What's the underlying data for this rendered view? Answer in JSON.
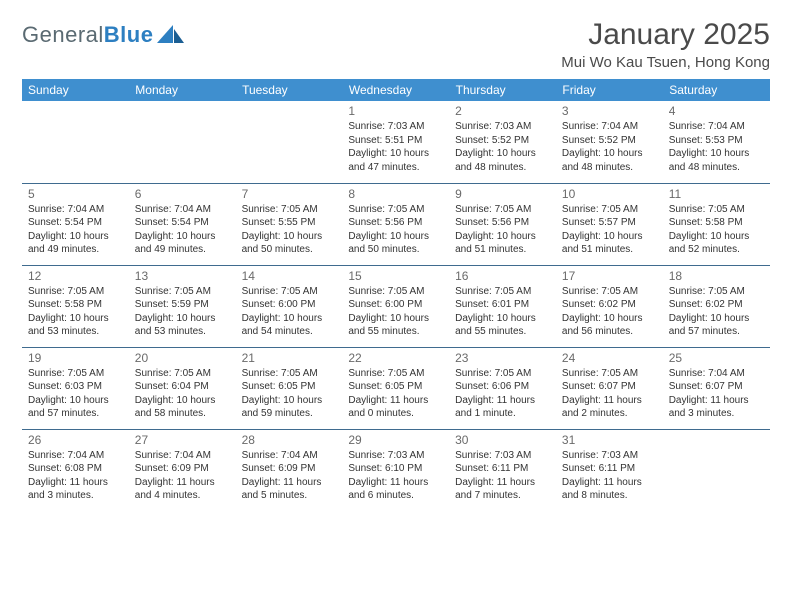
{
  "brand": {
    "text1": "General",
    "text2": "Blue"
  },
  "title": "January 2025",
  "location": "Mui Wo Kau Tsuen, Hong Kong",
  "colors": {
    "header_bg": "#3f8fcf",
    "header_text": "#ffffff",
    "cell_border": "#3f6b8f",
    "body_text": "#333333",
    "muted_text": "#6a6a6a",
    "brand_grey": "#5a6a72",
    "brand_blue": "#2d7fc1"
  },
  "typography": {
    "title_fontsize": 30,
    "location_fontsize": 15,
    "dayheader_fontsize": 12,
    "daynum_fontsize": 12,
    "info_fontsize": 10
  },
  "day_headers": [
    "Sunday",
    "Monday",
    "Tuesday",
    "Wednesday",
    "Thursday",
    "Friday",
    "Saturday"
  ],
  "weeks": [
    [
      {
        "num": "",
        "sunrise": "",
        "sunset": "",
        "daylight": ""
      },
      {
        "num": "",
        "sunrise": "",
        "sunset": "",
        "daylight": ""
      },
      {
        "num": "",
        "sunrise": "",
        "sunset": "",
        "daylight": ""
      },
      {
        "num": "1",
        "sunrise": "Sunrise: 7:03 AM",
        "sunset": "Sunset: 5:51 PM",
        "daylight": "Daylight: 10 hours and 47 minutes."
      },
      {
        "num": "2",
        "sunrise": "Sunrise: 7:03 AM",
        "sunset": "Sunset: 5:52 PM",
        "daylight": "Daylight: 10 hours and 48 minutes."
      },
      {
        "num": "3",
        "sunrise": "Sunrise: 7:04 AM",
        "sunset": "Sunset: 5:52 PM",
        "daylight": "Daylight: 10 hours and 48 minutes."
      },
      {
        "num": "4",
        "sunrise": "Sunrise: 7:04 AM",
        "sunset": "Sunset: 5:53 PM",
        "daylight": "Daylight: 10 hours and 48 minutes."
      }
    ],
    [
      {
        "num": "5",
        "sunrise": "Sunrise: 7:04 AM",
        "sunset": "Sunset: 5:54 PM",
        "daylight": "Daylight: 10 hours and 49 minutes."
      },
      {
        "num": "6",
        "sunrise": "Sunrise: 7:04 AM",
        "sunset": "Sunset: 5:54 PM",
        "daylight": "Daylight: 10 hours and 49 minutes."
      },
      {
        "num": "7",
        "sunrise": "Sunrise: 7:05 AM",
        "sunset": "Sunset: 5:55 PM",
        "daylight": "Daylight: 10 hours and 50 minutes."
      },
      {
        "num": "8",
        "sunrise": "Sunrise: 7:05 AM",
        "sunset": "Sunset: 5:56 PM",
        "daylight": "Daylight: 10 hours and 50 minutes."
      },
      {
        "num": "9",
        "sunrise": "Sunrise: 7:05 AM",
        "sunset": "Sunset: 5:56 PM",
        "daylight": "Daylight: 10 hours and 51 minutes."
      },
      {
        "num": "10",
        "sunrise": "Sunrise: 7:05 AM",
        "sunset": "Sunset: 5:57 PM",
        "daylight": "Daylight: 10 hours and 51 minutes."
      },
      {
        "num": "11",
        "sunrise": "Sunrise: 7:05 AM",
        "sunset": "Sunset: 5:58 PM",
        "daylight": "Daylight: 10 hours and 52 minutes."
      }
    ],
    [
      {
        "num": "12",
        "sunrise": "Sunrise: 7:05 AM",
        "sunset": "Sunset: 5:58 PM",
        "daylight": "Daylight: 10 hours and 53 minutes."
      },
      {
        "num": "13",
        "sunrise": "Sunrise: 7:05 AM",
        "sunset": "Sunset: 5:59 PM",
        "daylight": "Daylight: 10 hours and 53 minutes."
      },
      {
        "num": "14",
        "sunrise": "Sunrise: 7:05 AM",
        "sunset": "Sunset: 6:00 PM",
        "daylight": "Daylight: 10 hours and 54 minutes."
      },
      {
        "num": "15",
        "sunrise": "Sunrise: 7:05 AM",
        "sunset": "Sunset: 6:00 PM",
        "daylight": "Daylight: 10 hours and 55 minutes."
      },
      {
        "num": "16",
        "sunrise": "Sunrise: 7:05 AM",
        "sunset": "Sunset: 6:01 PM",
        "daylight": "Daylight: 10 hours and 55 minutes."
      },
      {
        "num": "17",
        "sunrise": "Sunrise: 7:05 AM",
        "sunset": "Sunset: 6:02 PM",
        "daylight": "Daylight: 10 hours and 56 minutes."
      },
      {
        "num": "18",
        "sunrise": "Sunrise: 7:05 AM",
        "sunset": "Sunset: 6:02 PM",
        "daylight": "Daylight: 10 hours and 57 minutes."
      }
    ],
    [
      {
        "num": "19",
        "sunrise": "Sunrise: 7:05 AM",
        "sunset": "Sunset: 6:03 PM",
        "daylight": "Daylight: 10 hours and 57 minutes."
      },
      {
        "num": "20",
        "sunrise": "Sunrise: 7:05 AM",
        "sunset": "Sunset: 6:04 PM",
        "daylight": "Daylight: 10 hours and 58 minutes."
      },
      {
        "num": "21",
        "sunrise": "Sunrise: 7:05 AM",
        "sunset": "Sunset: 6:05 PM",
        "daylight": "Daylight: 10 hours and 59 minutes."
      },
      {
        "num": "22",
        "sunrise": "Sunrise: 7:05 AM",
        "sunset": "Sunset: 6:05 PM",
        "daylight": "Daylight: 11 hours and 0 minutes."
      },
      {
        "num": "23",
        "sunrise": "Sunrise: 7:05 AM",
        "sunset": "Sunset: 6:06 PM",
        "daylight": "Daylight: 11 hours and 1 minute."
      },
      {
        "num": "24",
        "sunrise": "Sunrise: 7:05 AM",
        "sunset": "Sunset: 6:07 PM",
        "daylight": "Daylight: 11 hours and 2 minutes."
      },
      {
        "num": "25",
        "sunrise": "Sunrise: 7:04 AM",
        "sunset": "Sunset: 6:07 PM",
        "daylight": "Daylight: 11 hours and 3 minutes."
      }
    ],
    [
      {
        "num": "26",
        "sunrise": "Sunrise: 7:04 AM",
        "sunset": "Sunset: 6:08 PM",
        "daylight": "Daylight: 11 hours and 3 minutes."
      },
      {
        "num": "27",
        "sunrise": "Sunrise: 7:04 AM",
        "sunset": "Sunset: 6:09 PM",
        "daylight": "Daylight: 11 hours and 4 minutes."
      },
      {
        "num": "28",
        "sunrise": "Sunrise: 7:04 AM",
        "sunset": "Sunset: 6:09 PM",
        "daylight": "Daylight: 11 hours and 5 minutes."
      },
      {
        "num": "29",
        "sunrise": "Sunrise: 7:03 AM",
        "sunset": "Sunset: 6:10 PM",
        "daylight": "Daylight: 11 hours and 6 minutes."
      },
      {
        "num": "30",
        "sunrise": "Sunrise: 7:03 AM",
        "sunset": "Sunset: 6:11 PM",
        "daylight": "Daylight: 11 hours and 7 minutes."
      },
      {
        "num": "31",
        "sunrise": "Sunrise: 7:03 AM",
        "sunset": "Sunset: 6:11 PM",
        "daylight": "Daylight: 11 hours and 8 minutes."
      },
      {
        "num": "",
        "sunrise": "",
        "sunset": "",
        "daylight": ""
      }
    ]
  ]
}
